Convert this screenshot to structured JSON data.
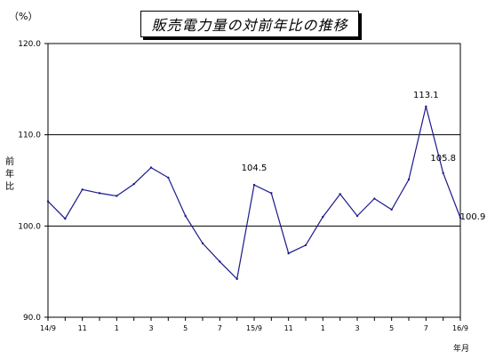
{
  "chart_data": {
    "type": "line",
    "title": "販売電力量の対前年比の推移",
    "unit": "（%）",
    "ylabel": "前年比",
    "xlabel": "年月",
    "ylim": [
      90,
      120
    ],
    "yticks": [
      "120.0",
      "110.0",
      "100.0",
      "90.0"
    ],
    "ytick_values": [
      120,
      110,
      100,
      90
    ],
    "reference_lines": [
      110,
      100
    ],
    "xtick_labels": [
      {
        "index": 0,
        "label": "14/9"
      },
      {
        "index": 2,
        "label": "11"
      },
      {
        "index": 4,
        "label": "1"
      },
      {
        "index": 6,
        "label": "3"
      },
      {
        "index": 8,
        "label": "5"
      },
      {
        "index": 10,
        "label": "7"
      },
      {
        "index": 12,
        "label": "15/9"
      },
      {
        "index": 14,
        "label": "11"
      },
      {
        "index": 16,
        "label": "1"
      },
      {
        "index": 18,
        "label": "3"
      },
      {
        "index": 20,
        "label": "5"
      },
      {
        "index": 22,
        "label": "7"
      },
      {
        "index": 24,
        "label": "16/9"
      }
    ],
    "series": [
      {
        "color": "#1a1a8c",
        "values": [
          102.7,
          100.8,
          104.0,
          103.6,
          103.3,
          104.6,
          106.4,
          105.3,
          101.1,
          98.1,
          96.1,
          94.2,
          104.5,
          103.6,
          97.0,
          97.9,
          101.0,
          103.5,
          101.1,
          103.0,
          101.8,
          105.1,
          113.1,
          105.8,
          100.9
        ]
      }
    ],
    "data_labels": [
      {
        "index": 12,
        "text": "104.5"
      },
      {
        "index": 22,
        "text": "113.1"
      },
      {
        "index": 23,
        "text": "105.8"
      },
      {
        "index": 24,
        "text": "100.9"
      }
    ]
  }
}
